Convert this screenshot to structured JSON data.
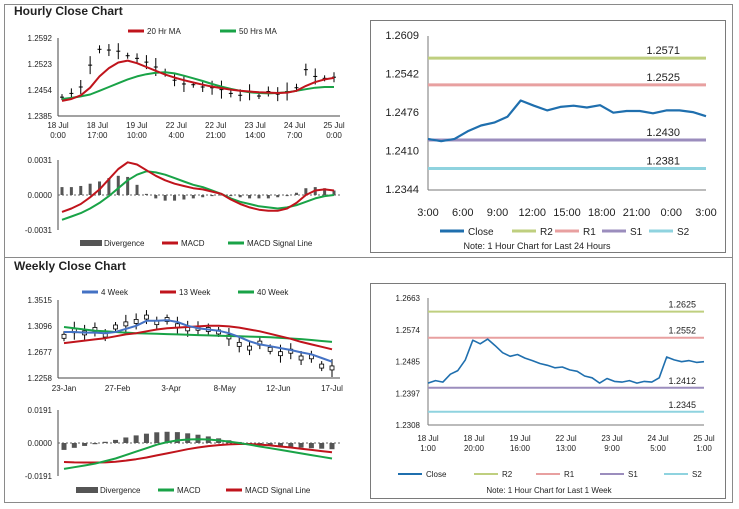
{
  "hourly_title": "Hourly Close Chart",
  "weekly_title": "Weekly Close Chart",
  "chart_data": [
    {
      "type": "line",
      "id": "hourly-price",
      "title": "",
      "legend": [
        "20 Hr MA",
        "50 Hrs MA"
      ],
      "colors": {
        "price": "#000000",
        "ma20": "#c0141c",
        "ma50": "#19a347"
      },
      "yticks": [
        "1.2592",
        "1.2523",
        "1.2454",
        "1.2385"
      ],
      "ylim": [
        1.2385,
        1.2592
      ],
      "xlabels": [
        [
          "18 Jul",
          "0:00"
        ],
        [
          "18 Jul",
          "17:00"
        ],
        [
          "19 Jul",
          "10:00"
        ],
        [
          "22 Jul",
          "4:00"
        ],
        [
          "22 Jul",
          "21:00"
        ],
        [
          "23 Jul",
          "14:00"
        ],
        [
          "24 Jul",
          "7:00"
        ],
        [
          "25 Jul",
          "0:00"
        ]
      ],
      "price": [
        1.2435,
        1.2445,
        1.2462,
        1.252,
        1.2562,
        1.256,
        1.2557,
        1.2545,
        1.2538,
        1.2528,
        1.2515,
        1.25,
        1.248,
        1.247,
        1.2468,
        1.2462,
        1.246,
        1.2455,
        1.2445,
        1.244,
        1.2448,
        1.2438,
        1.245,
        1.2443,
        1.245,
        1.246,
        1.2508,
        1.249,
        1.2485,
        1.2488
      ],
      "ma20": [
        1.2425,
        1.243,
        1.244,
        1.246,
        1.249,
        1.2512,
        1.2527,
        1.2532,
        1.2525,
        1.2515,
        1.2505,
        1.2495,
        1.2487,
        1.248,
        1.2474,
        1.2468,
        1.2463,
        1.2459,
        1.2455,
        1.2452,
        1.245,
        1.2448,
        1.2447,
        1.2446,
        1.2447,
        1.2452,
        1.2465,
        1.2475,
        1.2482,
        1.2486
      ],
      "ma50": [
        1.243,
        1.2433,
        1.2437,
        1.2442,
        1.2452,
        1.2462,
        1.2472,
        1.2482,
        1.249,
        1.2496,
        1.25,
        1.2501,
        1.2498,
        1.2492,
        1.2485,
        1.2478,
        1.247,
        1.2463,
        1.2457,
        1.2452,
        1.2448,
        1.2446,
        1.2445,
        1.2446,
        1.2448,
        1.2452,
        1.2456,
        1.246,
        1.2462,
        1.2462
      ]
    },
    {
      "type": "line",
      "id": "hourly-macd",
      "title": "",
      "legend": [
        "Divergence",
        "MACD",
        "MACD Signal Line"
      ],
      "colors": {
        "divergence": "#555555",
        "macd": "#c0141c",
        "signal": "#19a347"
      },
      "yticks": [
        "0.0031",
        "0.0000",
        "-0.0031"
      ],
      "ylim": [
        -0.0031,
        0.0031
      ],
      "macd": [
        -0.0015,
        -0.0012,
        -0.0008,
        -0.0002,
        0.0005,
        0.0014,
        0.0023,
        0.0029,
        0.0027,
        0.0022,
        0.0017,
        0.0013,
        0.001,
        0.0008,
        0.0006,
        0.0005,
        0.0003,
        0.0001,
        -0.0004,
        -0.0008,
        -0.0011,
        -0.0013,
        -0.0014,
        -0.0014,
        -0.0012,
        -0.0007,
        0.0,
        0.0004,
        0.0005,
        0.0004
      ],
      "signal": [
        -0.0022,
        -0.0019,
        -0.0016,
        -0.0012,
        -0.0007,
        -0.0001,
        0.0006,
        0.0013,
        0.0018,
        0.0021,
        0.002,
        0.0018,
        0.0015,
        0.0012,
        0.0009,
        0.0007,
        0.0004,
        0.0001,
        -0.0003,
        -0.0006,
        -0.0008,
        -0.001,
        -0.0011,
        -0.0012,
        -0.0011,
        -0.0009,
        -0.0006,
        -0.0003,
        -0.0001,
        0.0
      ],
      "divergence": [
        0.0007,
        0.0007,
        0.0008,
        0.001,
        0.0012,
        0.0015,
        0.0017,
        0.0016,
        0.0009,
        0.0001,
        -0.0003,
        -0.0005,
        -0.0005,
        -0.0004,
        -0.0003,
        -0.0002,
        -0.0001,
        0.0,
        -0.0001,
        -0.0002,
        -0.0003,
        -0.0003,
        -0.0003,
        -0.0002,
        -0.0001,
        0.0002,
        0.0006,
        0.0007,
        0.0006,
        0.0004
      ]
    },
    {
      "type": "line",
      "id": "hourly-pivots",
      "title": "",
      "legend": [
        "Close",
        "R2",
        "R1",
        "S1",
        "S2"
      ],
      "note": "Note: 1 Hour Chart for Last 24 Hours",
      "colors": {
        "close": "#1f6fae",
        "r2": "#bfcf7f",
        "r1": "#e8a0a0",
        "s1": "#9b8dbd",
        "s2": "#8fd3df"
      },
      "yticks": [
        "1.2609",
        "1.2542",
        "1.2476",
        "1.2410",
        "1.2344"
      ],
      "ylim": [
        1.2344,
        1.2609
      ],
      "xlabels": [
        "3:00",
        "6:00",
        "9:00",
        "12:00",
        "15:00",
        "18:00",
        "21:00",
        "0:00",
        "3:00"
      ],
      "levels": [
        {
          "name": "R2",
          "value": 1.2571,
          "label": "1.2571"
        },
        {
          "name": "R1",
          "value": 1.2525,
          "label": "1.2525"
        },
        {
          "name": "S1",
          "value": 1.243,
          "label": "1.2430"
        },
        {
          "name": "S2",
          "value": 1.2381,
          "label": "1.2381"
        }
      ],
      "close": [
        1.2432,
        1.2428,
        1.2432,
        1.2445,
        1.2455,
        1.246,
        1.247,
        1.2498,
        1.2489,
        1.2481,
        1.2487,
        1.2489,
        1.2486,
        1.249,
        1.2477,
        1.248,
        1.248,
        1.2476,
        1.2481,
        1.2481,
        1.2478,
        1.2471
      ]
    },
    {
      "type": "line",
      "id": "weekly-price",
      "title": "",
      "legend": [
        "4 Week",
        "13 Week",
        "40 Week"
      ],
      "colors": {
        "price": "#000000",
        "w4": "#4472c4",
        "w13": "#c0141c",
        "w40": "#19a347"
      },
      "yticks": [
        "1.3515",
        "1.3096",
        "1.2677",
        "1.2258"
      ],
      "ylim": [
        1.2258,
        1.3515
      ],
      "xlabels": [
        "23-Jan",
        "27-Feb",
        "3-Apr",
        "8-May",
        "12-Jun",
        "17-Jul"
      ],
      "price": [
        1.293,
        1.302,
        1.2985,
        1.304,
        1.295,
        1.308,
        1.313,
        1.317,
        1.324,
        1.315,
        1.32,
        1.31,
        1.305,
        1.306,
        1.304,
        1.3,
        1.292,
        1.28,
        1.274,
        1.282,
        1.272,
        1.265,
        1.269,
        1.258,
        1.26,
        1.245,
        1.242
      ],
      "w4": [
        1.3,
        1.3,
        1.299,
        1.299,
        1.298,
        1.3,
        1.305,
        1.31,
        1.318,
        1.318,
        1.319,
        1.316,
        1.31,
        1.306,
        1.304,
        1.302,
        1.298,
        1.292,
        1.285,
        1.28,
        1.277,
        1.274,
        1.271,
        1.267,
        1.264,
        1.258,
        1.252
      ],
      "w13": [
        1.282,
        1.284,
        1.286,
        1.288,
        1.29,
        1.293,
        1.296,
        1.298,
        1.301,
        1.304,
        1.306,
        1.307,
        1.308,
        1.309,
        1.31,
        1.31,
        1.309,
        1.307,
        1.304,
        1.301,
        1.297,
        1.293,
        1.289,
        1.284,
        1.28,
        1.276,
        1.272
      ],
      "w40": [
        1.308,
        1.306,
        1.304,
        1.302,
        1.301,
        1.3,
        1.299,
        1.298,
        1.2975,
        1.297,
        1.2965,
        1.296,
        1.2955,
        1.295,
        1.2945,
        1.294,
        1.2935,
        1.293,
        1.2925,
        1.292,
        1.2915,
        1.2905,
        1.2895,
        1.2885,
        1.287,
        1.2855,
        1.284
      ]
    },
    {
      "type": "line",
      "id": "weekly-macd",
      "title": "",
      "legend": [
        "Divergence",
        "MACD",
        "MACD Signal Line"
      ],
      "colors": {
        "divergence": "#555555",
        "macd": "#19a347",
        "signal": "#c0141c"
      },
      "yticks": [
        "0.0191",
        "0.0000",
        "-0.0191"
      ],
      "ylim": [
        -0.0191,
        0.0191
      ],
      "macd": [
        -0.015,
        -0.014,
        -0.013,
        -0.012,
        -0.0105,
        -0.009,
        -0.007,
        -0.005,
        -0.003,
        -0.001,
        0.0005,
        0.0015,
        0.002,
        0.0022,
        0.002,
        0.0015,
        0.0008,
        0.0,
        -0.001,
        -0.002,
        -0.003,
        -0.004,
        -0.005,
        -0.006,
        -0.007,
        -0.008,
        -0.009
      ],
      "signal": [
        -0.011,
        -0.0112,
        -0.0113,
        -0.0113,
        -0.0112,
        -0.0108,
        -0.0102,
        -0.0094,
        -0.0084,
        -0.0072,
        -0.006,
        -0.0048,
        -0.0036,
        -0.0026,
        -0.0018,
        -0.0012,
        -0.0008,
        -0.0006,
        -0.0006,
        -0.0009,
        -0.0014,
        -0.002,
        -0.0026,
        -0.0033,
        -0.004,
        -0.0047,
        -0.0054
      ],
      "divergence": [
        -0.004,
        -0.0028,
        -0.0017,
        -0.0007,
        0.0007,
        0.0018,
        0.0032,
        0.0044,
        0.0054,
        0.0062,
        0.0065,
        0.0063,
        0.0056,
        0.0048,
        0.0038,
        0.0027,
        0.0016,
        0.0006,
        -0.0004,
        -0.0011,
        -0.0016,
        -0.002,
        -0.0024,
        -0.0027,
        -0.003,
        -0.0033,
        -0.0036
      ]
    },
    {
      "type": "line",
      "id": "weekly-pivots",
      "title": "",
      "legend": [
        "Close",
        "R2",
        "R1",
        "S1",
        "S2"
      ],
      "note": "Note: 1 Hour Chart for Last 1 Week",
      "colors": {
        "close": "#1f6fae",
        "r2": "#bfcf7f",
        "r1": "#e8a0a0",
        "s1": "#9b8dbd",
        "s2": "#8fd3df"
      },
      "yticks": [
        "1.2663",
        "1.2574",
        "1.2485",
        "1.2397",
        "1.2308"
      ],
      "ylim": [
        1.2308,
        1.2663
      ],
      "xlabels": [
        [
          "18 Jul",
          "1:00"
        ],
        [
          "18 Jul",
          "20:00"
        ],
        [
          "19 Jul",
          "16:00"
        ],
        [
          "22 Jul",
          "13:00"
        ],
        [
          "23 Jul",
          "9:00"
        ],
        [
          "24 Jul",
          "5:00"
        ],
        [
          "25 Jul",
          "1:00"
        ]
      ],
      "levels": [
        {
          "name": "R2",
          "value": 1.2625,
          "label": "1.2625"
        },
        {
          "name": "R1",
          "value": 1.2552,
          "label": "1.2552"
        },
        {
          "name": "S1",
          "value": 1.2412,
          "label": "1.2412"
        },
        {
          "name": "S2",
          "value": 1.2345,
          "label": "1.2345"
        }
      ],
      "close": [
        1.2425,
        1.2432,
        1.2428,
        1.245,
        1.246,
        1.249,
        1.2545,
        1.2535,
        1.2548,
        1.253,
        1.251,
        1.25,
        1.2505,
        1.2495,
        1.2488,
        1.248,
        1.2475,
        1.2468,
        1.247,
        1.2462,
        1.2458,
        1.2445,
        1.244,
        1.2425,
        1.2438,
        1.243,
        1.2428,
        1.2432,
        1.2425,
        1.243,
        1.2428,
        1.244,
        1.2498,
        1.249,
        1.2485,
        1.2488,
        1.2483,
        1.2485
      ]
    }
  ]
}
